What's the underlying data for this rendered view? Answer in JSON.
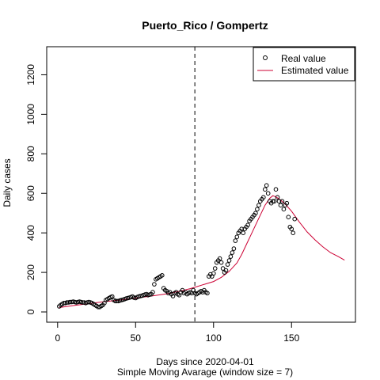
{
  "chart_data": {
    "type": "line",
    "title": "Puerto_Rico / Gompertz",
    "xlabel": "Days since 2020-04-01",
    "sublabel": "Simple Moving Avarage (window size = 7)",
    "ylabel": "Daily cases",
    "xlim": [
      -7,
      191
    ],
    "ylim": [
      -52,
      1342
    ],
    "xticks": [
      0,
      50,
      100,
      150
    ],
    "yticks": [
      0,
      200,
      400,
      600,
      800,
      1000,
      1200
    ],
    "vline_x": 88,
    "legend": {
      "position": "top-right",
      "entries": [
        {
          "label": "Real value",
          "style": "point",
          "color": "#000000"
        },
        {
          "label": "Estimated value",
          "style": "line",
          "color": "#cc0033"
        }
      ]
    },
    "series": [
      {
        "name": "Real value",
        "style": "points",
        "color": "#000000",
        "x": [
          1,
          2,
          3,
          4,
          5,
          6,
          7,
          8,
          9,
          10,
          11,
          12,
          13,
          14,
          15,
          16,
          17,
          18,
          19,
          20,
          21,
          22,
          23,
          24,
          25,
          26,
          27,
          28,
          29,
          30,
          31,
          32,
          33,
          34,
          35,
          36,
          37,
          38,
          39,
          40,
          41,
          42,
          43,
          44,
          45,
          46,
          47,
          48,
          49,
          50,
          51,
          52,
          53,
          54,
          55,
          56,
          57,
          58,
          59,
          60,
          61,
          62,
          63,
          64,
          65,
          66,
          67,
          68,
          69,
          70,
          71,
          72,
          73,
          74,
          75,
          76,
          77,
          78,
          79,
          80,
          81,
          82,
          83,
          84,
          85,
          86,
          87,
          88,
          89,
          90,
          91,
          92,
          93,
          94,
          95,
          96,
          97,
          98,
          99,
          100,
          101,
          102,
          103,
          104,
          105,
          106,
          107,
          108,
          109,
          110,
          111,
          112,
          113,
          114,
          115,
          116,
          117,
          118,
          119,
          120,
          121,
          122,
          123,
          124,
          125,
          126,
          127,
          128,
          129,
          130,
          131,
          132,
          133,
          134,
          135,
          136,
          137,
          138,
          139,
          140,
          141,
          142,
          143,
          144,
          145,
          146,
          147,
          148,
          149,
          150,
          151,
          152
        ],
        "y": [
          28,
          35,
          40,
          45,
          45,
          48,
          48,
          50,
          50,
          52,
          50,
          48,
          50,
          52,
          50,
          48,
          48,
          45,
          48,
          50,
          48,
          45,
          40,
          35,
          30,
          25,
          25,
          30,
          35,
          45,
          60,
          65,
          70,
          75,
          78,
          60,
          55,
          55,
          55,
          58,
          60,
          62,
          65,
          68,
          70,
          72,
          75,
          78,
          72,
          70,
          75,
          78,
          80,
          82,
          85,
          88,
          90,
          85,
          88,
          90,
          100,
          140,
          165,
          170,
          175,
          180,
          185,
          120,
          110,
          105,
          95,
          100,
          90,
          80,
          95,
          100,
          90,
          85,
          100,
          110,
          95,
          100,
          90,
          95,
          100,
          95,
          110,
          95,
          90,
          95,
          100,
          105,
          100,
          110,
          100,
          95,
          180,
          190,
          180,
          195,
          220,
          250,
          260,
          270,
          250,
          220,
          200,
          210,
          240,
          260,
          280,
          300,
          320,
          360,
          380,
          400,
          410,
          420,
          400,
          420,
          430,
          440,
          460,
          470,
          480,
          490,
          500,
          520,
          540,
          560,
          570,
          580,
          620,
          640,
          600,
          560,
          550,
          560,
          560,
          620,
          580,
          560,
          540,
          560,
          520,
          540,
          550,
          480,
          430,
          420,
          400,
          470
        ],
        "visible_count": 152
      },
      {
        "name": "Estimated value",
        "style": "line",
        "color": "#cc0033",
        "x": [
          1,
          10,
          20,
          30,
          40,
          50,
          60,
          70,
          80,
          85,
          90,
          95,
          100,
          105,
          110,
          115,
          118,
          121,
          124,
          127,
          130,
          133,
          136,
          138,
          140,
          143,
          146,
          150,
          155,
          160,
          165,
          170,
          175,
          180,
          184
        ],
        "y": [
          22,
          32,
          42,
          52,
          60,
          70,
          80,
          92,
          108,
          118,
          130,
          142,
          154,
          175,
          205,
          248,
          290,
          340,
          390,
          440,
          490,
          540,
          575,
          588,
          582,
          566,
          545,
          510,
          455,
          405,
          365,
          330,
          300,
          280,
          262
        ]
      }
    ]
  }
}
